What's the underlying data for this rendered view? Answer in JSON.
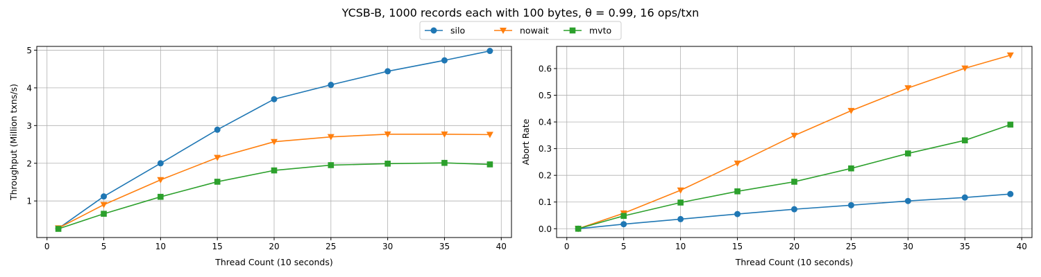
{
  "title": "YCSB-B, 1000 records each with 100 bytes, θ = 0.99, 16 ops/txn",
  "legend": {
    "placement": "top-center",
    "entries": [
      {
        "name": "silo",
        "color": "#1f77b4",
        "marker": "circle"
      },
      {
        "name": "nowait",
        "color": "#ff7f0e",
        "marker": "triangle-down"
      },
      {
        "name": "mvto",
        "color": "#2ca02c",
        "marker": "square"
      }
    ]
  },
  "chart_data": [
    {
      "type": "line",
      "xlabel": "Thread Count (10 seconds)",
      "ylabel": "Throughput (Million txns/s)",
      "xlim": [
        -0.9,
        40.9
      ],
      "ylim": [
        0.03,
        5.1
      ],
      "xticks": [
        0,
        5,
        10,
        15,
        20,
        25,
        30,
        35,
        40
      ],
      "yticks": [
        1,
        2,
        3,
        4,
        5
      ],
      "ytick_labels": [
        "1",
        "2",
        "3",
        "4",
        "5"
      ],
      "grid": true,
      "x": [
        1,
        5,
        10,
        15,
        20,
        25,
        30,
        35,
        39
      ],
      "series": [
        {
          "name": "silo",
          "color": "#1f77b4",
          "marker": "circle",
          "values": [
            0.27,
            1.12,
            2.0,
            2.89,
            3.7,
            4.08,
            4.44,
            4.73,
            4.98
          ]
        },
        {
          "name": "nowait",
          "color": "#ff7f0e",
          "marker": "triangle-down",
          "values": [
            0.28,
            0.9,
            1.56,
            2.15,
            2.57,
            2.7,
            2.77,
            2.77,
            2.76
          ]
        },
        {
          "name": "mvto",
          "color": "#2ca02c",
          "marker": "square",
          "values": [
            0.26,
            0.66,
            1.11,
            1.51,
            1.81,
            1.95,
            1.99,
            2.01,
            1.97
          ]
        }
      ]
    },
    {
      "type": "line",
      "xlabel": "Thread Count (10 seconds)",
      "ylabel": "Abort Rate",
      "xlim": [
        -0.9,
        40.9
      ],
      "ylim": [
        -0.033,
        0.683
      ],
      "xticks": [
        0,
        5,
        10,
        15,
        20,
        25,
        30,
        35,
        40
      ],
      "yticks": [
        0,
        0.1,
        0.2,
        0.3,
        0.4,
        0.5,
        0.6
      ],
      "ytick_labels": [
        "0.0",
        "0.1",
        "0.2",
        "0.3",
        "0.4",
        "0.5",
        "0.6"
      ],
      "grid": true,
      "x": [
        1,
        5,
        10,
        15,
        20,
        25,
        30,
        35,
        39
      ],
      "series": [
        {
          "name": "silo",
          "color": "#1f77b4",
          "marker": "circle",
          "values": [
            0.0,
            0.017,
            0.036,
            0.055,
            0.073,
            0.088,
            0.104,
            0.117,
            0.13
          ]
        },
        {
          "name": "nowait",
          "color": "#ff7f0e",
          "marker": "triangle-down",
          "values": [
            0.0,
            0.058,
            0.144,
            0.245,
            0.349,
            0.442,
            0.527,
            0.601,
            0.65
          ]
        },
        {
          "name": "mvto",
          "color": "#2ca02c",
          "marker": "square",
          "values": [
            0.0,
            0.048,
            0.098,
            0.14,
            0.176,
            0.226,
            0.282,
            0.331,
            0.39
          ]
        }
      ]
    }
  ]
}
